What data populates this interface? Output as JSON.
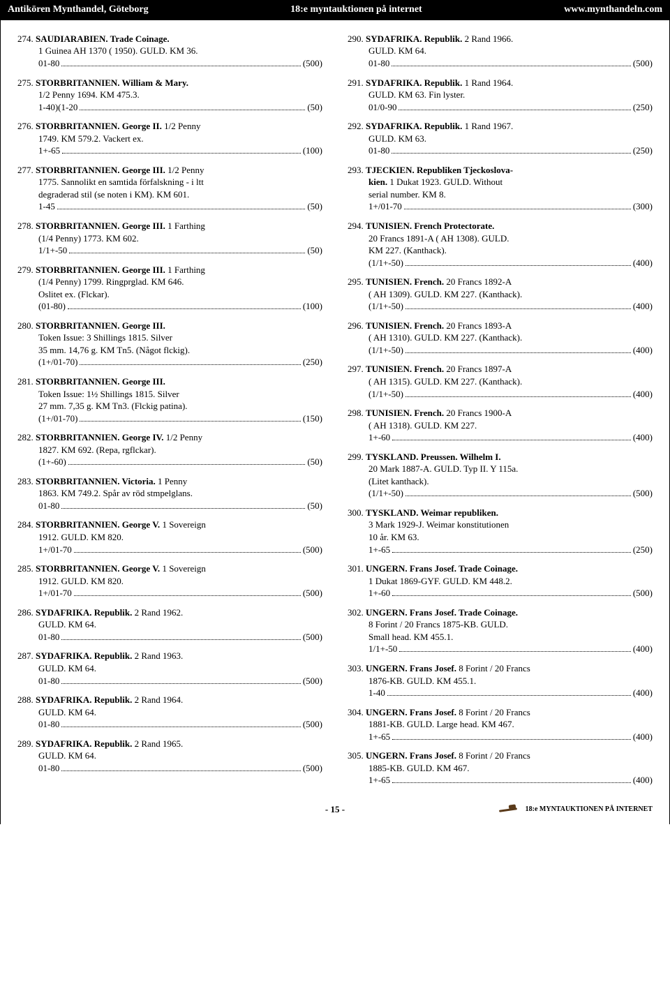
{
  "header": {
    "left": "Antikören Mynthandel, Göteborg",
    "center": "18:e myntauktionen på internet",
    "right": "www.mynthandeln.com"
  },
  "footer": {
    "page": "- 15 -",
    "tag": "18:e MYNTAUKTIONEN PÅ INTERNET"
  },
  "left": [
    {
      "n": "274.",
      "t": "SAUDIARABIEN. Trade Coinage.",
      "d": "",
      "b": [
        "1 Guinea AH 1370 ( 1950). GULD. KM 36."
      ],
      "pl": "01-80",
      "pv": "(500)"
    },
    {
      "n": "275.",
      "t": "STORBRITANNIEN. William & Mary.",
      "d": "",
      "b": [
        "1/2 Penny 1694. KM 475.3."
      ],
      "pl": "1-40)(1-20",
      "pv": "(50)"
    },
    {
      "n": "276.",
      "t": "STORBRITANNIEN. George II.",
      "d": " 1/2 Penny",
      "b": [
        "1749. KM 579.2. Vackert ex."
      ],
      "pl": "1+-65",
      "pv": "(100)"
    },
    {
      "n": "277.",
      "t": "STORBRITANNIEN. George III.",
      "d": " 1/2 Penny",
      "b": [
        "1775. Sannolikt en samtida förfalskning - i ltt",
        "degraderad stil (se noten i KM). KM 601."
      ],
      "pl": "1-45",
      "pv": "(50)"
    },
    {
      "n": "278.",
      "t": "STORBRITANNIEN. George III.",
      "d": " 1 Farthing",
      "b": [
        "(1/4 Penny) 1773. KM 602."
      ],
      "pl": "1/1+-50",
      "pv": "(50)"
    },
    {
      "n": "279.",
      "t": "STORBRITANNIEN. George III.",
      "d": " 1 Farthing",
      "b": [
        "(1/4 Penny) 1799. Ringprglad. KM 646.",
        "Oslitet ex. (Flckar)."
      ],
      "pl": "(01-80)",
      "pv": "(100)"
    },
    {
      "n": "280.",
      "t": "STORBRITANNIEN. George III.",
      "d": "",
      "b": [
        "Token Issue: 3 Shillings 1815. Silver",
        "35 mm. 14,76 g. KM Tn5. (Något flckig)."
      ],
      "pl": "(1+/01-70)",
      "pv": "(250)"
    },
    {
      "n": "281.",
      "t": "STORBRITANNIEN. George III.",
      "d": "",
      "b": [
        "Token Issue: 1½ Shillings 1815. Silver",
        "27 mm. 7,35 g. KM Tn3. (Flckig patina)."
      ],
      "pl": "(1+/01-70)",
      "pv": "(150)"
    },
    {
      "n": "282.",
      "t": "STORBRITANNIEN. George IV.",
      "d": " 1/2 Penny",
      "b": [
        "1827.  KM 692. (Repa, rgflckar)."
      ],
      "pl": "(1+-60)",
      "pv": "(50)"
    },
    {
      "n": "283.",
      "t": "STORBRITANNIEN. Victoria.",
      "d": " 1 Penny",
      "b": [
        "1863. KM 749.2. Spår av röd stmpelglans."
      ],
      "pl": "01-80",
      "pv": "(50)"
    },
    {
      "n": "284.",
      "t": "STORBRITANNIEN. George V.",
      "d": " 1 Sovereign",
      "b": [
        "1912. GULD. KM 820."
      ],
      "pl": "1+/01-70",
      "pv": "(500)"
    },
    {
      "n": "285.",
      "t": "STORBRITANNIEN. George V.",
      "d": " 1 Sovereign",
      "b": [
        "1912. GULD. KM 820."
      ],
      "pl": "1+/01-70",
      "pv": "(500)"
    },
    {
      "n": "286.",
      "t": "SYDAFRIKA. Republik.",
      "d": " 2 Rand 1962.",
      "b": [
        "GULD. KM 64."
      ],
      "pl": "01-80",
      "pv": "(500)"
    },
    {
      "n": "287.",
      "t": "SYDAFRIKA. Republik.",
      "d": " 2 Rand 1963.",
      "b": [
        "GULD. KM 64."
      ],
      "pl": "01-80",
      "pv": "(500)"
    },
    {
      "n": "288.",
      "t": "SYDAFRIKA. Republik.",
      "d": " 2 Rand 1964.",
      "b": [
        "GULD. KM 64."
      ],
      "pl": "01-80",
      "pv": "(500)"
    },
    {
      "n": "289.",
      "t": "SYDAFRIKA. Republik.",
      "d": " 2 Rand 1965.",
      "b": [
        "GULD. KM 64."
      ],
      "pl": "01-80",
      "pv": "(500)"
    }
  ],
  "right": [
    {
      "n": "290.",
      "t": "SYDAFRIKA. Republik.",
      "d": " 2 Rand 1966.",
      "b": [
        "GULD. KM 64."
      ],
      "pl": "01-80",
      "pv": "(500)"
    },
    {
      "n": "291.",
      "t": "SYDAFRIKA. Republik.",
      "d": " 1 Rand 1964.",
      "b": [
        "GULD. KM 63. Fin lyster."
      ],
      "pl": "01/0-90",
      "pv": "(250)"
    },
    {
      "n": "292.",
      "t": "SYDAFRIKA. Republik.",
      "d": " 1 Rand 1967.",
      "b": [
        "GULD. KM 63."
      ],
      "pl": "01-80",
      "pv": "(250)"
    },
    {
      "n": "293.",
      "t": "TJECKIEN. Republiken Tjeckoslova-",
      "d": "",
      "b2": [
        {
          "bold": "kien.",
          "rest": " 1 Dukat 1923. GULD. Without"
        },
        "serial number. KM 8."
      ],
      "pl": "1+/01-70",
      "pv": "(300)"
    },
    {
      "n": "294.",
      "t": "TUNISIEN. French Protectorate.",
      "d": "",
      "b": [
        "20 Francs 1891-A ( AH 1308). GULD.",
        "KM 227. (Kanthack)."
      ],
      "pl": "(1/1+-50)",
      "pv": "(400)"
    },
    {
      "n": "295.",
      "t": "TUNISIEN. French.",
      "d": " 20 Francs 1892-A",
      "b": [
        "( AH 1309). GULD. KM 227. (Kanthack)."
      ],
      "pl": "(1/1+-50)",
      "pv": "(400)"
    },
    {
      "n": "296.",
      "t": "TUNISIEN. French.",
      "d": " 20 Francs 1893-A",
      "b": [
        "( AH 1310). GULD. KM 227. (Kanthack)."
      ],
      "pl": "(1/1+-50)",
      "pv": "(400)"
    },
    {
      "n": "297.",
      "t": "TUNISIEN. French.",
      "d": " 20 Francs 1897-A",
      "b": [
        "( AH 1315). GULD. KM 227. (Kanthack)."
      ],
      "pl": "(1/1+-50)",
      "pv": "(400)"
    },
    {
      "n": "298.",
      "t": "TUNISIEN. French.",
      "d": " 20 Francs 1900-A",
      "b": [
        "( AH 1318). GULD. KM 227."
      ],
      "pl": "1+-60",
      "pv": "(400)"
    },
    {
      "n": "299.",
      "t": "TYSKLAND. Preussen. Wilhelm I.",
      "d": "",
      "b": [
        "20 Mark 1887-A. GULD. Typ II. Y 115a.",
        "(Litet kanthack)."
      ],
      "pl": "(1/1+-50)",
      "pv": "(500)"
    },
    {
      "n": "300.",
      "t": "TYSKLAND. Weimar republiken.",
      "d": "",
      "b": [
        "3 Mark 1929-J. Weimar konstitutionen",
        "10 år. KM 63."
      ],
      "pl": "1+-65",
      "pv": "(250)"
    },
    {
      "n": "301.",
      "t": "UNGERN. Frans Josef. Trade Coinage.",
      "d": "",
      "b": [
        "1 Dukat 1869-GYF. GULD. KM 448.2."
      ],
      "pl": "1+-60",
      "pv": "(500)"
    },
    {
      "n": "302.",
      "t": "UNGERN. Frans Josef. Trade Coinage.",
      "d": "",
      "b": [
        "8 Forint / 20 Francs 1875-KB. GULD.",
        "Small head. KM 455.1."
      ],
      "pl": "1/1+-50",
      "pv": "(400)"
    },
    {
      "n": "303.",
      "t": "UNGERN. Frans Josef.",
      "d": " 8 Forint / 20 Francs",
      "b": [
        "1876-KB. GULD. KM 455.1."
      ],
      "pl": "1-40",
      "pv": "(400)"
    },
    {
      "n": "304.",
      "t": "UNGERN. Frans Josef.",
      "d": " 8 Forint / 20 Francs",
      "b": [
        "1881-KB. GULD. Large head. KM 467."
      ],
      "pl": "1+-65",
      "pv": "(400)"
    },
    {
      "n": "305.",
      "t": "UNGERN. Frans Josef.",
      "d": " 8 Forint / 20 Francs",
      "b": [
        "1885-KB. GULD. KM 467."
      ],
      "pl": "1+-65",
      "pv": "(400)"
    }
  ]
}
